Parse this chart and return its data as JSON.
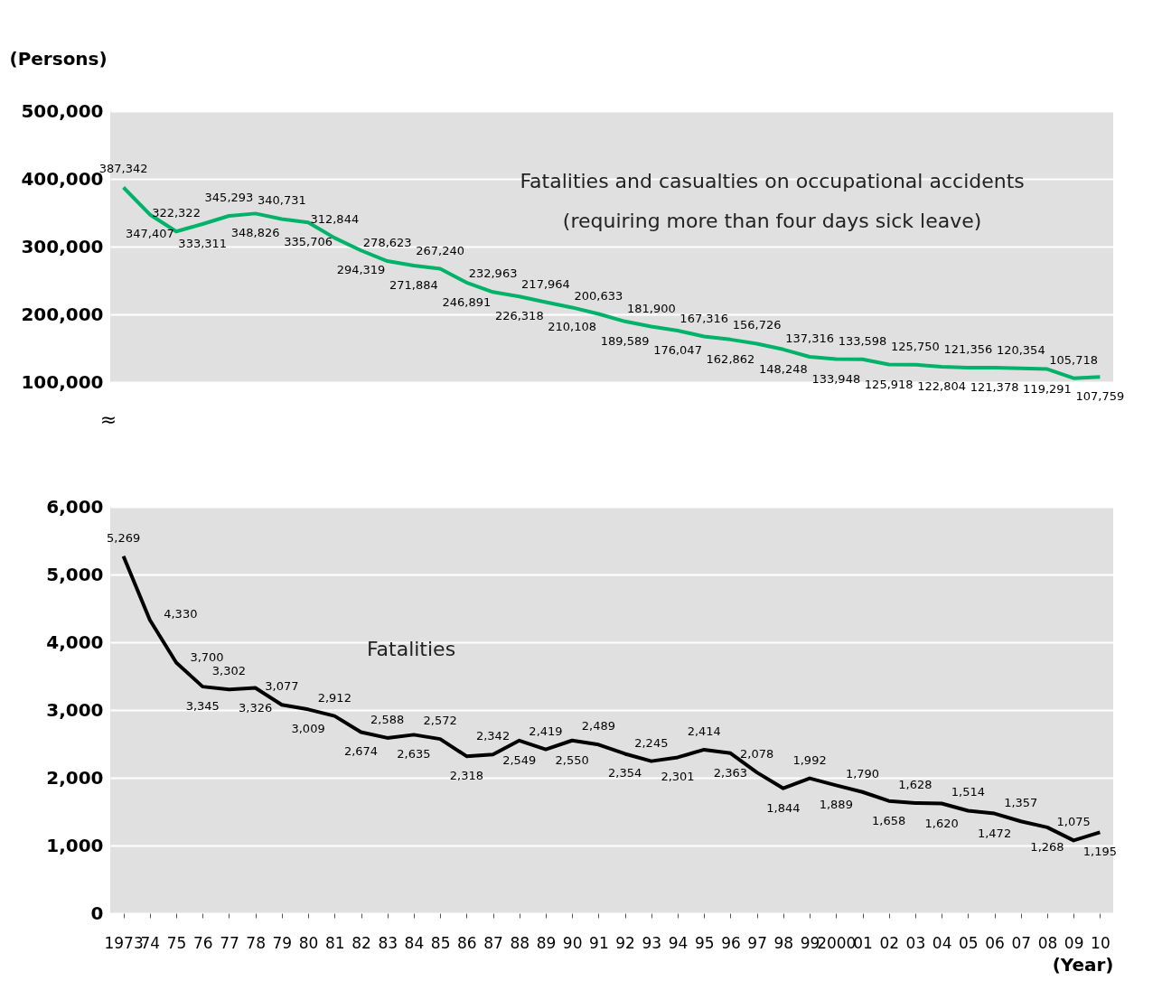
{
  "chart_data": [
    {
      "type": "line",
      "ylabel": "(Persons)",
      "tick_labels": "y",
      "grid": "y",
      "categories": [
        "1973",
        "74",
        "75",
        "76",
        "77",
        "78",
        "79",
        "80",
        "81",
        "82",
        "83",
        "84",
        "85",
        "86",
        "87",
        "88",
        "89",
        "90",
        "91",
        "92",
        "93",
        "94",
        "95",
        "96",
        "97",
        "98",
        "99",
        "2000",
        "01",
        "02",
        "03",
        "04",
        "05",
        "06",
        "07",
        "08",
        "09",
        "10"
      ],
      "series": [
        {
          "name": "Fatalities and casualties on occupational accidents\n(requiring more than four days sick leave)",
          "color": "#00b26a",
          "values": [
            387342,
            347407,
            322322,
            333311,
            345293,
            348826,
            340731,
            335706,
            312844,
            294319,
            278623,
            271884,
            267240,
            246891,
            232963,
            226318,
            217964,
            210108,
            200633,
            189589,
            181900,
            176047,
            167316,
            162862,
            156726,
            148248,
            137316,
            133948,
            133598,
            125918,
            125750,
            122804,
            121356,
            121378,
            120354,
            119291,
            105718,
            107759
          ],
          "value_labels": [
            "387,342",
            "347,407",
            "322,322",
            "333,311",
            "345,293",
            "348,826",
            "340,731",
            "335,706",
            "312,844",
            "294,319",
            "278,623",
            "271,884",
            "267,240",
            "246,891",
            "232,963",
            "226,318",
            "217,964",
            "210,108",
            "200,633",
            "189,589",
            "181,900",
            "176,047",
            "167,316",
            "162,862",
            "156,726",
            "148,248",
            "137,316",
            "133,948",
            "133,598",
            "125,918",
            "125,750",
            "122,804",
            "121,356",
            "121,378",
            "120,354",
            "119,291",
            "105,718",
            "107,759"
          ]
        }
      ],
      "ylim": [
        100000,
        500000
      ],
      "yticks": [
        {
          "value": 100000,
          "label": "100,000"
        },
        {
          "value": 200000,
          "label": "200,000"
        },
        {
          "value": 300000,
          "label": "300,000"
        },
        {
          "value": 400000,
          "label": "400,000"
        },
        {
          "value": 500000,
          "label": "500,000"
        }
      ],
      "annotations": [
        "≈"
      ]
    },
    {
      "type": "line",
      "xlabel": "(Year)",
      "grid": "y",
      "categories": [
        "1973",
        "74",
        "75",
        "76",
        "77",
        "78",
        "79",
        "80",
        "81",
        "82",
        "83",
        "84",
        "85",
        "86",
        "87",
        "88",
        "89",
        "90",
        "91",
        "92",
        "93",
        "94",
        "95",
        "96",
        "97",
        "98",
        "99",
        "2000",
        "01",
        "02",
        "03",
        "04",
        "05",
        "06",
        "07",
        "08",
        "09",
        "10"
      ],
      "series": [
        {
          "name": "Fatalities",
          "color": "#000000",
          "values": [
            5269,
            4330,
            3700,
            3345,
            3302,
            3326,
            3077,
            3009,
            2912,
            2674,
            2588,
            2635,
            2572,
            2318,
            2342,
            2549,
            2419,
            2550,
            2489,
            2354,
            2245,
            2301,
            2414,
            2363,
            2078,
            1844,
            1992,
            1889,
            1790,
            1658,
            1628,
            1620,
            1514,
            1472,
            1357,
            1268,
            1075,
            1195
          ],
          "value_labels": [
            "5,269",
            "4,330",
            "3,700",
            "3,345",
            "3,302",
            "3,326",
            "3,077",
            "3,009",
            "2,912",
            "2,674",
            "2,588",
            "2,635",
            "2,572",
            "2,318",
            "2,342",
            "2,549",
            "2,419",
            "2,550",
            "2,489",
            "2,354",
            "2,245",
            "2,301",
            "2,414",
            "2,363",
            "2,078",
            "1,844",
            "1,992",
            "1,889",
            "1,790",
            "1,658",
            "1,628",
            "1,620",
            "1,514",
            "1,472",
            "1,357",
            "1,268",
            "1,075",
            "1,195"
          ]
        }
      ],
      "ylim": [
        0,
        6000
      ],
      "yticks": [
        0,
        {
          "value": 1000,
          "label": "1,000"
        },
        {
          "value": 2000,
          "label": "2,000"
        },
        {
          "value": 3000,
          "label": "3,000"
        },
        {
          "value": 4000,
          "label": "4,000"
        },
        {
          "value": 5000,
          "label": "5,000"
        },
        {
          "value": 6000,
          "label": "6,000"
        }
      ]
    }
  ]
}
